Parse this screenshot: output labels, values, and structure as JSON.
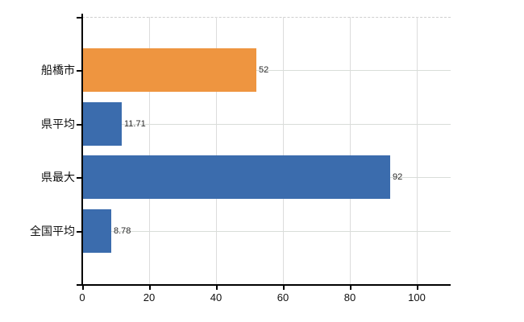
{
  "chart_data": {
    "type": "bar",
    "orientation": "horizontal",
    "title": "",
    "xlabel": "",
    "ylabel": "",
    "categories": [
      "船橋市",
      "県平均",
      "県最大",
      "全国平均"
    ],
    "values": [
      52,
      11.71,
      92,
      8.78
    ],
    "value_labels": [
      "52",
      "11.71",
      "92",
      "8.78"
    ],
    "bar_colors": [
      "#ee9540",
      "#3b6cad",
      "#3b6cad",
      "#3b6cad"
    ],
    "x_ticks": [
      0,
      20,
      40,
      60,
      80,
      100
    ],
    "x_tick_labels": [
      "0",
      "20",
      "40",
      "60",
      "80",
      "100"
    ],
    "xlim": [
      0,
      110
    ],
    "grid": true,
    "legend": null,
    "colors": {
      "orange_series": "#ee9540",
      "blue_series": "#3b6cad",
      "axis": "#000000",
      "gridline": "#dcdcdc",
      "text": "#111111",
      "value_text": "#2b2b2b",
      "background": "#ffffff"
    }
  }
}
